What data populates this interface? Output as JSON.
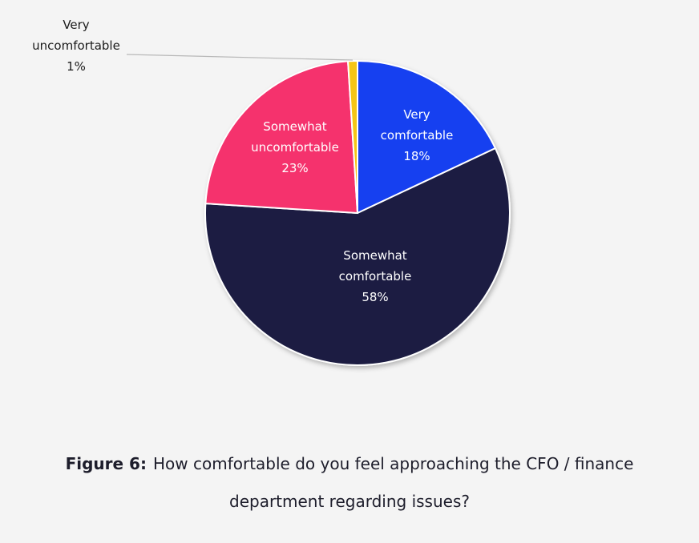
{
  "chart_data": {
    "type": "pie",
    "title": "",
    "slices": [
      {
        "label_lines": [
          "Very",
          "comfortable",
          "18%"
        ],
        "category": "Very comfortable",
        "value": 18,
        "color": "#1940f0"
      },
      {
        "label_lines": [
          "Somewhat",
          "comfortable",
          "58%"
        ],
        "category": "Somewhat comfortable",
        "value": 58,
        "color": "#1a1d42"
      },
      {
        "label_lines": [
          "Somewhat",
          "uncomfortable",
          "23%"
        ],
        "category": "Somewhat uncomfortable",
        "value": 23,
        "color": "#f5336d"
      },
      {
        "label_lines": [
          "Very",
          "uncomfortable",
          "1%"
        ],
        "category": "Very uncomfortable",
        "value": 1,
        "color": "#f5c518"
      }
    ],
    "start_angle_deg": 0,
    "direction": "clockwise"
  },
  "caption": {
    "figure_label": "Figure 6:",
    "line1": "How comfortable do you feel approaching the CFO / finance",
    "line2": "department regarding issues?"
  }
}
